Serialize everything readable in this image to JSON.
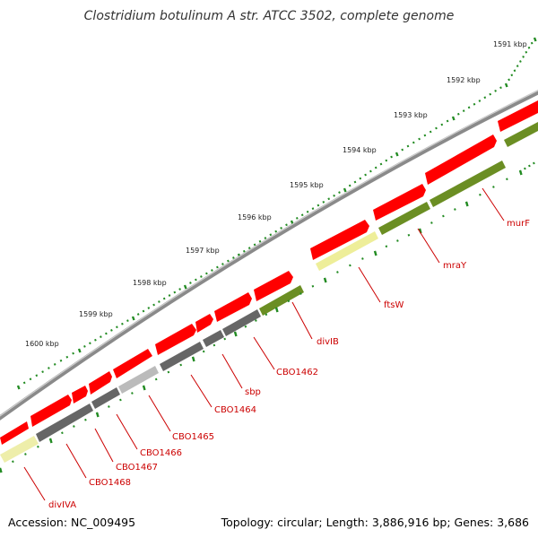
{
  "title": "Clostridium botulinum A str. ATCC 3502, complete genome",
  "accession": "Accession: NC_009495",
  "summary": "Topology: circular; Length: 3,886,916 bp; Genes: 3,686",
  "colors": {
    "forward_gene": "#ff0000",
    "cds_olive": "#6b8e23",
    "cds_yellow": "#f0e68c",
    "cds_dark": "#666666",
    "cds_light": "#bbbbbb",
    "backbone": "#888888",
    "tick": "#228b22",
    "label": "#cc0000"
  },
  "scale_ticks": [
    {
      "label": "1591 kbp"
    },
    {
      "label": "1592 kbp"
    },
    {
      "label": "1593 kbp"
    },
    {
      "label": "1594 kbp"
    },
    {
      "label": "1595 kbp"
    },
    {
      "label": "1596 kbp"
    },
    {
      "label": "1597 kbp"
    },
    {
      "label": "1598 kbp"
    },
    {
      "label": "1599 kbp"
    },
    {
      "label": "1600 kbp"
    }
  ],
  "gene_labels": [
    {
      "label": "murF"
    },
    {
      "label": "mraY"
    },
    {
      "label": "ftsW"
    },
    {
      "label": "divIB"
    },
    {
      "label": "CBO1462"
    },
    {
      "label": "sbp"
    },
    {
      "label": "CBO1464"
    },
    {
      "label": "CBO1465"
    },
    {
      "label": "CBO1466"
    },
    {
      "label": "CBO1467"
    },
    {
      "label": "CBO1468"
    },
    {
      "label": "divIVA"
    }
  ]
}
